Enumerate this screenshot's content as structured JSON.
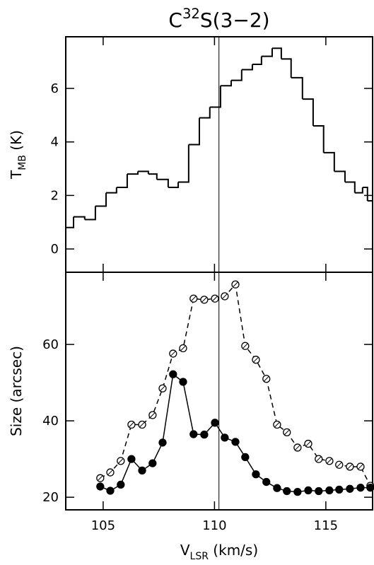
{
  "chart_data": [
    {
      "type": "histogram",
      "title": [
        "C",
        "32",
        "S(3−2)"
      ],
      "ylabel": [
        "T",
        "MB",
        " (K)"
      ],
      "bins": [
        103.32,
        103.67,
        104.17,
        104.65,
        105.13,
        105.6,
        106.08,
        106.56,
        107.03,
        107.41,
        107.92,
        108.37,
        108.84,
        109.32,
        109.79,
        110.27,
        110.75,
        111.22,
        111.7,
        112.11,
        112.59,
        113.0,
        113.44,
        113.95,
        114.43,
        114.9,
        115.38,
        115.86,
        116.3,
        116.65,
        116.87,
        117.1
      ],
      "values": [
        0.8,
        1.2,
        1.1,
        1.6,
        2.1,
        2.3,
        2.8,
        2.9,
        2.8,
        2.6,
        2.3,
        2.5,
        3.9,
        4.9,
        5.3,
        6.1,
        6.3,
        6.7,
        6.9,
        7.2,
        7.5,
        7.1,
        6.4,
        5.6,
        4.6,
        3.6,
        2.9,
        2.5,
        2.1,
        2.3,
        1.8
      ],
      "color": "#000000",
      "xlim": [
        103.32,
        117.1
      ],
      "xticks": [
        105,
        110,
        115
      ],
      "ylim": [
        -0.87,
        7.93
      ],
      "yticks": [
        0,
        2,
        4,
        6
      ],
      "vline": 110.2
    },
    {
      "type": "line",
      "ylabel": [
        "Size (arcsec)"
      ],
      "xlabel": [
        "V",
        "LSR",
        " (km/s)"
      ],
      "x": [
        104.87,
        105.32,
        105.79,
        106.27,
        106.75,
        107.22,
        107.67,
        108.14,
        108.59,
        109.06,
        109.54,
        110.02,
        110.46,
        110.94,
        111.38,
        111.86,
        112.33,
        112.81,
        113.25,
        113.73,
        114.21,
        114.68,
        115.16,
        115.6,
        116.08,
        116.56,
        117.0
      ],
      "series": [
        {
          "marker": "open",
          "dash": true,
          "color": "#000000",
          "values": [
            25,
            26.5,
            29.5,
            39,
            39,
            41.5,
            48.5,
            57.6,
            59,
            72,
            71.7,
            72,
            72.6,
            75.7,
            59.6,
            56,
            51,
            39,
            37,
            33,
            34,
            30,
            29.5,
            28.5,
            28,
            28,
            23
          ]
        },
        {
          "marker": "filled",
          "dash": false,
          "color": "#000000",
          "values": [
            22.8,
            21.7,
            23.3,
            30,
            27,
            28.9,
            34.3,
            52.2,
            50.2,
            36.5,
            36.4,
            39.5,
            35.6,
            34.5,
            30.5,
            26,
            24,
            22.4,
            21.6,
            21.4,
            21.8,
            21.6,
            21.8,
            22,
            22.2,
            22.5,
            22.5
          ]
        }
      ],
      "xlim": [
        103.32,
        117.1
      ],
      "xticks": [
        105,
        110,
        115
      ],
      "ylim": [
        16.7,
        78.9
      ],
      "yticks": [
        20,
        40,
        60
      ],
      "vline": 110.2
    }
  ]
}
